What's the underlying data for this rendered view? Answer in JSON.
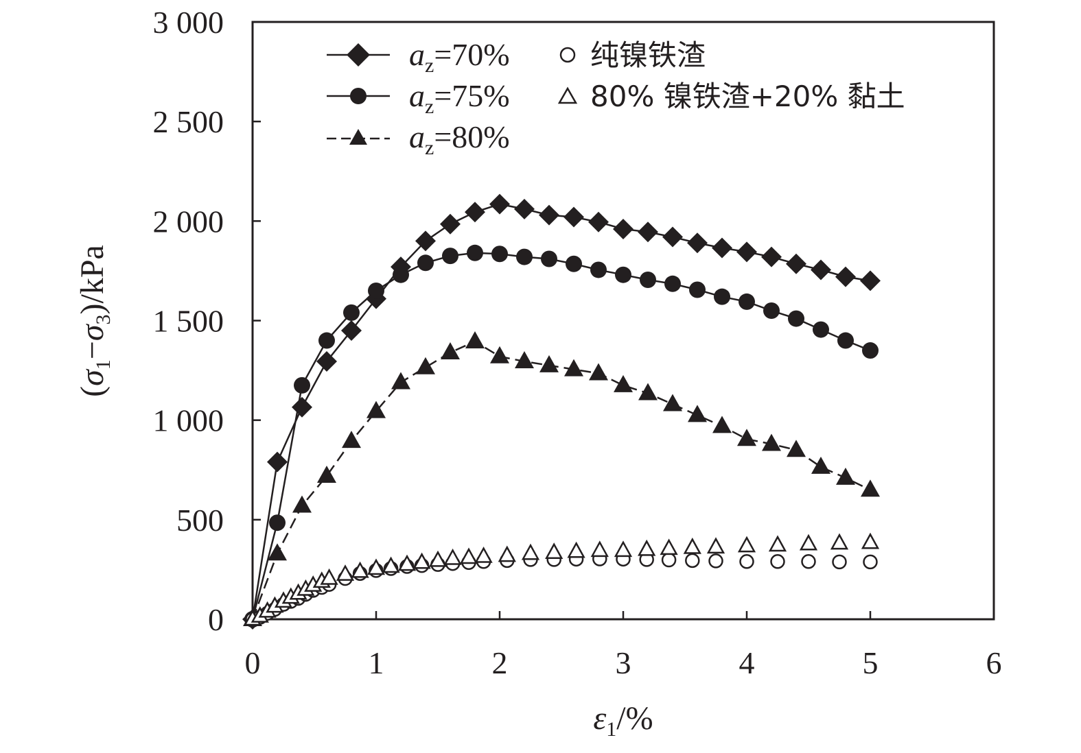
{
  "chart_data": {
    "type": "line",
    "xlabel": {
      "symbol": "ε",
      "sub": "1",
      "unit": "/%"
    },
    "ylabel": {
      "open": "(",
      "s1": "σ",
      "sub1": "1",
      "minus": "−",
      "s3": "σ",
      "sub3": "3",
      "unit": ")/kPa"
    },
    "xlim": [
      0,
      6
    ],
    "ylim": [
      0,
      3000
    ],
    "xticks": [
      0,
      1,
      2,
      3,
      4,
      5,
      6
    ],
    "xtick_labels": [
      "0",
      "1",
      "2",
      "3",
      "4",
      "5",
      "6"
    ],
    "yticks": [
      0,
      500,
      1000,
      1500,
      2000,
      2500,
      3000
    ],
    "ytick_labels": [
      "0",
      "500",
      "1 000",
      "1 500",
      "2 000",
      "2 500",
      "3 000"
    ],
    "grid": false,
    "legend_position": "top",
    "series": [
      {
        "name": "a_z=70%",
        "label": {
          "var": "a",
          "sub": "z",
          "rest": "=70%"
        },
        "marker": "diamond-filled",
        "line": "solid",
        "x": [
          0,
          0.2,
          0.4,
          0.6,
          0.8,
          1.0,
          1.2,
          1.4,
          1.6,
          1.8,
          2.0,
          2.2,
          2.4,
          2.6,
          2.8,
          3.0,
          3.2,
          3.4,
          3.6,
          3.8,
          4.0,
          4.2,
          4.4,
          4.6,
          4.8,
          5.0
        ],
        "y": [
          0,
          790,
          1065,
          1295,
          1450,
          1610,
          1770,
          1900,
          1985,
          2045,
          2085,
          2060,
          2030,
          2020,
          1995,
          1960,
          1945,
          1920,
          1890,
          1865,
          1845,
          1820,
          1785,
          1755,
          1720,
          1700
        ]
      },
      {
        "name": "a_z=75%",
        "label": {
          "var": "a",
          "sub": "z",
          "rest": "=75%"
        },
        "marker": "circle-filled",
        "line": "solid",
        "x": [
          0,
          0.2,
          0.4,
          0.6,
          0.8,
          1.0,
          1.2,
          1.4,
          1.6,
          1.8,
          2.0,
          2.2,
          2.4,
          2.6,
          2.8,
          3.0,
          3.2,
          3.4,
          3.6,
          3.8,
          4.0,
          4.2,
          4.4,
          4.6,
          4.8,
          5.0
        ],
        "y": [
          0,
          485,
          1175,
          1400,
          1540,
          1650,
          1730,
          1790,
          1825,
          1840,
          1835,
          1820,
          1810,
          1785,
          1755,
          1730,
          1705,
          1685,
          1655,
          1620,
          1595,
          1550,
          1510,
          1455,
          1400,
          1350
        ]
      },
      {
        "name": "a_z=80%",
        "label": {
          "var": "a",
          "sub": "z",
          "rest": "=80%"
        },
        "marker": "triangle-filled",
        "line": "dashed",
        "x": [
          0,
          0.2,
          0.4,
          0.6,
          0.8,
          1.0,
          1.2,
          1.4,
          1.6,
          1.8,
          2.0,
          2.2,
          2.4,
          2.6,
          2.8,
          3.0,
          3.2,
          3.4,
          3.6,
          3.8,
          4.0,
          4.2,
          4.4,
          4.6,
          4.8,
          5.0
        ],
        "y": [
          0,
          330,
          570,
          720,
          895,
          1045,
          1190,
          1265,
          1340,
          1395,
          1320,
          1295,
          1275,
          1255,
          1235,
          1175,
          1135,
          1080,
          1025,
          970,
          905,
          880,
          850,
          765,
          710,
          650
        ]
      },
      {
        "name": "纯镍铁渣",
        "label": {
          "text": "纯镍铁渣"
        },
        "marker": "circle-open",
        "line": "none",
        "x": [
          0,
          0.06,
          0.12,
          0.18,
          0.25,
          0.31,
          0.37,
          0.43,
          0.49,
          0.56,
          0.62,
          0.75,
          0.87,
          1.0,
          1.12,
          1.25,
          1.37,
          1.5,
          1.62,
          1.75,
          1.87,
          2.06,
          2.25,
          2.44,
          2.62,
          2.81,
          3.0,
          3.19,
          3.37,
          3.56,
          3.75,
          4.0,
          4.25,
          4.5,
          4.75,
          5.0
        ],
        "y": [
          0,
          10,
          30,
          50,
          75,
          90,
          105,
          125,
          145,
          160,
          175,
          205,
          230,
          245,
          255,
          265,
          270,
          275,
          280,
          285,
          290,
          295,
          300,
          300,
          302,
          303,
          302,
          300,
          298,
          295,
          293,
          290,
          290,
          290,
          288,
          288
        ]
      },
      {
        "name": "80% 镍铁渣+20% 黏土",
        "label": {
          "text": "80% 镍铁渣+20% 黏土"
        },
        "marker": "triangle-open",
        "line": "none",
        "x": [
          0,
          0.06,
          0.12,
          0.18,
          0.25,
          0.31,
          0.37,
          0.43,
          0.49,
          0.56,
          0.62,
          0.75,
          0.87,
          1.0,
          1.12,
          1.25,
          1.37,
          1.5,
          1.62,
          1.75,
          1.87,
          2.06,
          2.25,
          2.44,
          2.62,
          2.81,
          3.0,
          3.19,
          3.37,
          3.56,
          3.75,
          4.0,
          4.25,
          4.5,
          4.75,
          5.0
        ],
        "y": [
          0,
          15,
          40,
          65,
          90,
          110,
          130,
          150,
          170,
          190,
          205,
          225,
          240,
          255,
          265,
          275,
          285,
          295,
          305,
          310,
          315,
          320,
          330,
          335,
          340,
          345,
          345,
          350,
          355,
          360,
          362,
          368,
          372,
          378,
          382,
          385
        ]
      }
    ]
  }
}
